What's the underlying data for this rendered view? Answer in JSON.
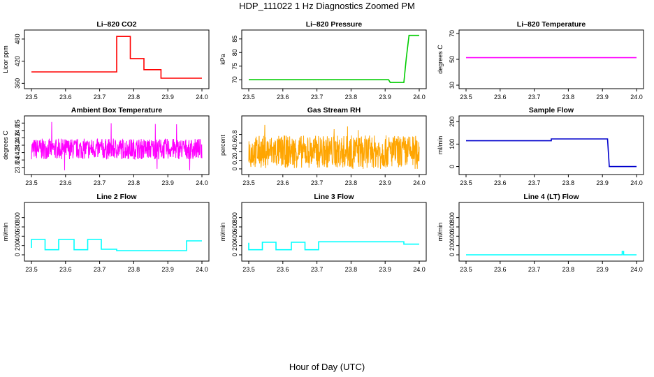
{
  "title": "HDP_111022  1 Hz Diagnostics Zoomed PM",
  "xlabel": "Hour of Day (UTC)",
  "chart_data": [
    {
      "type": "line",
      "title": "Li–820 CO2",
      "ylabel": "Licor ppm",
      "color": "#ff0000",
      "xlim": [
        23.5,
        24.0
      ],
      "ylim": [
        355,
        495
      ],
      "xticks": [
        "23.5",
        "23.6",
        "23.7",
        "23.8",
        "23.9",
        "24.0"
      ],
      "yticks": [
        360,
        420,
        480
      ],
      "series": [
        {
          "x": [
            23.5,
            23.75,
            23.75,
            23.79,
            23.79,
            23.83,
            23.83,
            23.88,
            23.88,
            24.0
          ],
          "y": [
            391,
            391,
            487,
            487,
            427,
            427,
            397,
            397,
            374,
            374
          ]
        }
      ]
    },
    {
      "type": "line",
      "title": "Li–820 Pressure",
      "ylabel": "kPa",
      "color": "#00cc00",
      "xlim": [
        23.5,
        24.0
      ],
      "ylim": [
        68,
        87
      ],
      "xticks": [
        "23.5",
        "23.6",
        "23.7",
        "23.8",
        "23.9",
        "24.0"
      ],
      "yticks": [
        70,
        75,
        80,
        85
      ],
      "series": [
        {
          "x": [
            23.5,
            23.91,
            23.915,
            23.955,
            23.962,
            23.97,
            24.0
          ],
          "y": [
            70,
            70,
            69,
            69,
            78,
            86.3,
            86.3
          ]
        }
      ]
    },
    {
      "type": "line",
      "title": "Li–820 Temperature",
      "ylabel": "degrees C",
      "color": "#ff00ff",
      "xlim": [
        23.5,
        24.0
      ],
      "ylim": [
        30,
        70
      ],
      "xticks": [
        "23.5",
        "23.6",
        "23.7",
        "23.8",
        "23.9",
        "24.0"
      ],
      "yticks": [
        30,
        50,
        70
      ],
      "series": [
        {
          "x": [
            23.5,
            24.0
          ],
          "y": [
            51.3,
            51.3
          ]
        }
      ]
    },
    {
      "type": "line",
      "title": "Ambient Box Temperature",
      "ylabel": "degrees C",
      "color": "#ff00ff",
      "xlim": [
        23.5,
        24.0
      ],
      "ylim": [
        23.7,
        25.1
      ],
      "xticks": [
        "23.5",
        "23.6",
        "23.7",
        "23.8",
        "23.9",
        "24.0"
      ],
      "yticks": [
        23.8,
        24.0,
        24.2,
        24.4,
        24.6,
        24.8,
        25.0
      ],
      "noise": {
        "mean": 24.3,
        "spread": 0.28,
        "min": 23.72,
        "max": 25.06
      }
    },
    {
      "type": "line",
      "title": "Gas Stream RH",
      "ylabel": "percent",
      "color": "#ffa500",
      "xlim": [
        23.5,
        24.0
      ],
      "ylim": [
        -0.05,
        1.15
      ],
      "xticks": [
        "23.5",
        "23.6",
        "23.7",
        "23.8",
        "23.9",
        "24.0"
      ],
      "yticks": [
        0.0,
        0.2,
        0.4,
        0.6,
        0.8
      ],
      "noise": {
        "mean": 0.4,
        "spread": 0.38,
        "min": 0.0,
        "max": 1.1
      }
    },
    {
      "type": "line",
      "title": "Sample Flow",
      "ylabel": "ml/min",
      "color": "#0000cc",
      "xlim": [
        23.5,
        24.0
      ],
      "ylim": [
        -20,
        210
      ],
      "xticks": [
        "23.5",
        "23.6",
        "23.7",
        "23.8",
        "23.9",
        "24.0"
      ],
      "yticks": [
        0,
        100,
        200
      ],
      "series": [
        {
          "x": [
            23.5,
            23.58,
            23.6,
            23.75,
            23.75,
            23.915,
            23.92,
            24.0
          ],
          "y": [
            115,
            115,
            115,
            115,
            123,
            123,
            0,
            0
          ]
        }
      ]
    },
    {
      "type": "line",
      "title": "Line 2 Flow",
      "ylabel": "ml/min",
      "color": "#00ffff",
      "xlim": [
        23.5,
        24.0
      ],
      "ylim": [
        -60,
        1050
      ],
      "xticks": [
        "23.5",
        "23.6",
        "23.7",
        "23.8",
        "23.9",
        "24.0"
      ],
      "yticks": [
        0,
        200,
        400,
        600,
        800
      ],
      "series": [
        {
          "x": [
            23.5,
            23.5,
            23.54,
            23.54,
            23.58,
            23.58,
            23.625,
            23.625,
            23.665,
            23.665,
            23.705,
            23.705,
            23.75,
            23.75,
            23.955,
            23.955,
            24.0
          ],
          "y": [
            150,
            330,
            330,
            110,
            110,
            330,
            330,
            110,
            110,
            330,
            330,
            120,
            120,
            90,
            90,
            300,
            300
          ]
        }
      ]
    },
    {
      "type": "line",
      "title": "Line 3 Flow",
      "ylabel": "ml/min",
      "color": "#00ffff",
      "xlim": [
        23.5,
        24.0
      ],
      "ylim": [
        -60,
        1050
      ],
      "xticks": [
        "23.5",
        "23.6",
        "23.7",
        "23.8",
        "23.9",
        "24.0"
      ],
      "yticks": [
        0,
        200,
        400,
        600,
        800
      ],
      "series": [
        {
          "x": [
            23.5,
            23.5,
            23.54,
            23.54,
            23.58,
            23.58,
            23.625,
            23.625,
            23.665,
            23.665,
            23.705,
            23.705,
            23.955,
            23.955,
            24.0
          ],
          "y": [
            260,
            110,
            110,
            270,
            270,
            110,
            110,
            270,
            270,
            110,
            110,
            280,
            280,
            230,
            230
          ]
        }
      ]
    },
    {
      "type": "line",
      "title": "Line 4 (LT) Flow",
      "ylabel": "ml/min",
      "color": "#00ffff",
      "xlim": [
        23.5,
        24.0
      ],
      "ylim": [
        -60,
        1050
      ],
      "xticks": [
        "23.5",
        "23.6",
        "23.7",
        "23.8",
        "23.9",
        "24.0"
      ],
      "yticks": [
        0,
        200,
        400,
        600,
        800
      ],
      "series": [
        {
          "x": [
            23.5,
            23.958,
            23.958,
            23.962,
            23.962,
            24.0
          ],
          "y": [
            0,
            0,
            70,
            70,
            0,
            0
          ]
        }
      ]
    }
  ]
}
